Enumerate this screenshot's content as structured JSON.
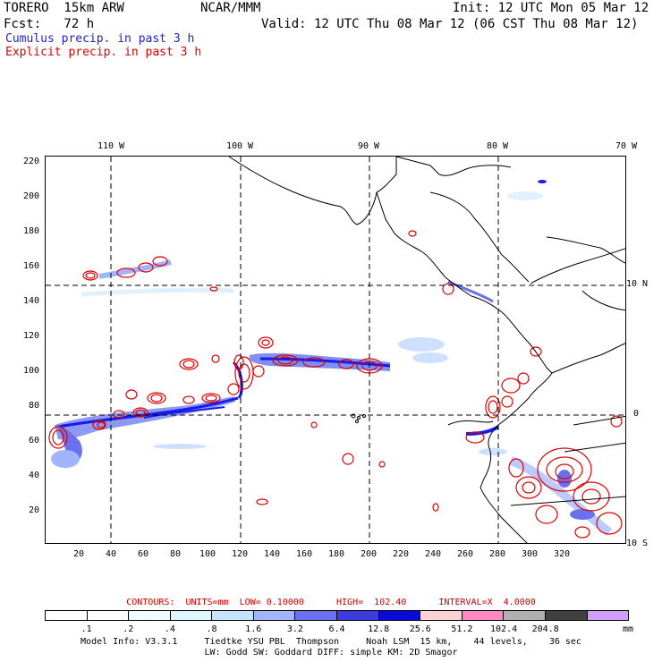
{
  "header": {
    "model": "TORERO  15km ARW",
    "org": "NCAR/MMM",
    "init": "Init: 12 UTC Mon 05 Mar 12",
    "fcst": "Fcst:   72 h",
    "valid": "Valid: 12 UTC Thu 08 Mar 12 (06 CST Thu 08 Mar 12)",
    "field1": "Cumulus precip. in past 3 h",
    "field2": "Explicit precip. in past 3 h",
    "field1_color": "#2222cc",
    "field2_color": "#dd0000"
  },
  "map": {
    "lon_labels": [
      "110 W",
      "100 W",
      "90 W",
      "80 W",
      "70 W"
    ],
    "lat_labels": [
      "10 N",
      "0",
      "10 S"
    ],
    "y_ticks": [
      "220",
      "200",
      "180",
      "160",
      "140",
      "120",
      "100",
      "80",
      "60",
      "40",
      "20"
    ],
    "x_ticks": [
      "20",
      "40",
      "60",
      "80",
      "100",
      "120",
      "140",
      "160",
      "180",
      "200",
      "220",
      "240",
      "260",
      "280",
      "300",
      "320"
    ],
    "colors": {
      "coast": "#000000",
      "grid": "#000000",
      "explicit": "#dd0000",
      "cumulus_dark": "#1a1aee",
      "cumulus_mid": "#7f8ff0",
      "cumulus_light": "#cfe0ff"
    }
  },
  "legend": {
    "contours_text": "CONTOURS:  UNITS=mm  LOW= 0.10000      HIGH=  102.40      INTERVAL=X  4.0000",
    "colors": [
      "#ffffff",
      "#ffffff",
      "#f0fbff",
      "#e0f6ff",
      "#c6e3ff",
      "#a0b4ff",
      "#6a70ee",
      "#3c3cdd",
      "#0a0ad8",
      "#ffd2d2",
      "#ff88c0",
      "#b0b0b0",
      "#404040",
      "#d0a0ff"
    ],
    "labels": [
      ".1",
      ".2",
      ".4",
      ".8",
      "1.6",
      "3.2",
      "6.4",
      "12.8",
      "25.6",
      "51.2",
      "102.4",
      "204.8"
    ],
    "units": "mm"
  },
  "footer": {
    "line1": "Model Info: V3.3.1     Tiedtke YSU PBL  Thompson     Noah LSM  15 km,    44 levels,    36 sec",
    "line2": "LW: Godd SW: Goddard DIFF: simple KM: 2D Smagor"
  }
}
